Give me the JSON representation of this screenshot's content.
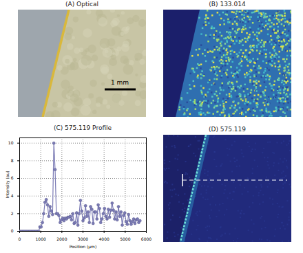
{
  "chart_data": [
    {
      "type": "image",
      "title": "(A) Optical",
      "annotation": "1 mm"
    },
    {
      "type": "image",
      "title": "(B) 133.014"
    },
    {
      "type": "line",
      "title": "(C) 575.119 Profile",
      "x_label": "Position (μm)",
      "y_label": "Intensity (au)",
      "x": [
        0,
        60,
        120,
        180,
        240,
        300,
        360,
        420,
        480,
        540,
        600,
        660,
        720,
        780,
        840,
        900,
        960,
        1020,
        1080,
        1140,
        1200,
        1260,
        1320,
        1380,
        1440,
        1500,
        1560,
        1620,
        1680,
        1740,
        1800,
        1860,
        1920,
        1980,
        2040,
        2100,
        2160,
        2220,
        2280,
        2340,
        2400,
        2460,
        2520,
        2580,
        2640,
        2700,
        2760,
        2820,
        2880,
        2940,
        3000,
        3060,
        3120,
        3180,
        3240,
        3300,
        3360,
        3420,
        3480,
        3540,
        3600,
        3660,
        3720,
        3780,
        3840,
        3900,
        3960,
        4020,
        4080,
        4140,
        4200,
        4260,
        4320,
        4380,
        4440,
        4500,
        4560,
        4620,
        4680,
        4740,
        4800,
        4860,
        4920,
        4980,
        5040,
        5100,
        5160,
        5220,
        5280,
        5340,
        5400,
        5460,
        5520,
        5580,
        5640,
        5700
      ],
      "values": [
        0,
        0,
        0,
        0,
        0,
        0,
        0,
        0,
        0,
        0,
        0,
        0,
        0,
        0,
        0,
        0,
        0.5,
        0.5,
        1.0,
        2.0,
        3.3,
        3.6,
        3.0,
        1.7,
        2.8,
        2.3,
        1.9,
        10.0,
        7.0,
        2.0,
        2.0,
        1.8,
        1.0,
        1.3,
        1.5,
        1.2,
        1.5,
        1.4,
        1.6,
        1.6,
        1.7,
        1.3,
        2.0,
        0.9,
        1.0,
        2.1,
        0.7,
        2.0,
        3.5,
        2.3,
        1.2,
        1.5,
        2.9,
        1.7,
        2.2,
        1.0,
        2.8,
        2.5,
        0.9,
        2.2,
        2.2,
        1.4,
        3.0,
        2.6,
        1.0,
        1.4,
        2.0,
        2.6,
        1.7,
        1.4,
        2.5,
        1.6,
        2.4,
        3.2,
        2.4,
        1.4,
        2.2,
        1.3,
        2.8,
        1.7,
        2.2,
        0.7,
        1.8,
        2.1,
        1.1,
        0.8,
        1.9,
        1.2,
        0.8,
        1.1,
        1.4,
        0.9,
        1.3,
        1.4,
        1.0,
        1.2
      ],
      "color": "#7b7bb5",
      "marker": "circle",
      "line_style": "solid",
      "xlim": [
        0,
        6000
      ],
      "xticks": [
        0,
        1000,
        2000,
        3000,
        4000,
        5000,
        6000
      ],
      "ylim": [
        0,
        10.6
      ],
      "yticks": [
        0,
        2,
        4,
        6,
        8,
        10
      ],
      "grid": true
    },
    {
      "type": "image",
      "title": "(D) 575.119"
    }
  ]
}
